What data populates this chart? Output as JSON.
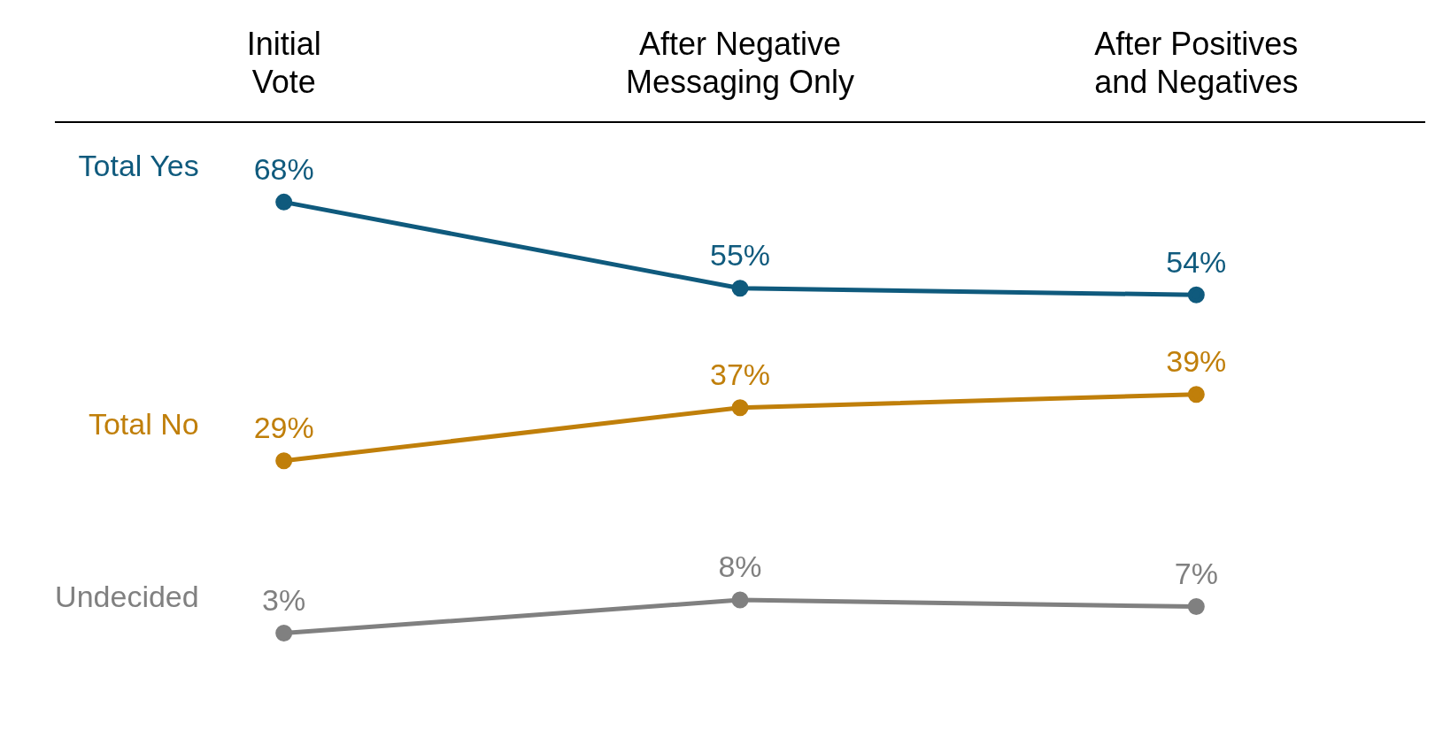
{
  "chart_data": {
    "type": "line",
    "categories": [
      "Initial Vote",
      "After Negative Messaging Only",
      "After Positives and Negatives"
    ],
    "series": [
      {
        "name": "Total Yes",
        "color": "#0f5a7d",
        "values": [
          68,
          55,
          54
        ],
        "value_labels": [
          "68%",
          "55%",
          "54%"
        ]
      },
      {
        "name": "Total No",
        "color": "#c07f0a",
        "values": [
          29,
          37,
          39
        ],
        "value_labels": [
          "29%",
          "37%",
          "39%"
        ]
      },
      {
        "name": "Undecided",
        "color": "#808080",
        "values": [
          3,
          8,
          7
        ],
        "value_labels": [
          "3%",
          "8%",
          "7%"
        ]
      }
    ],
    "grid": false,
    "legend": false,
    "marker": "circle",
    "line_style": "solid"
  }
}
